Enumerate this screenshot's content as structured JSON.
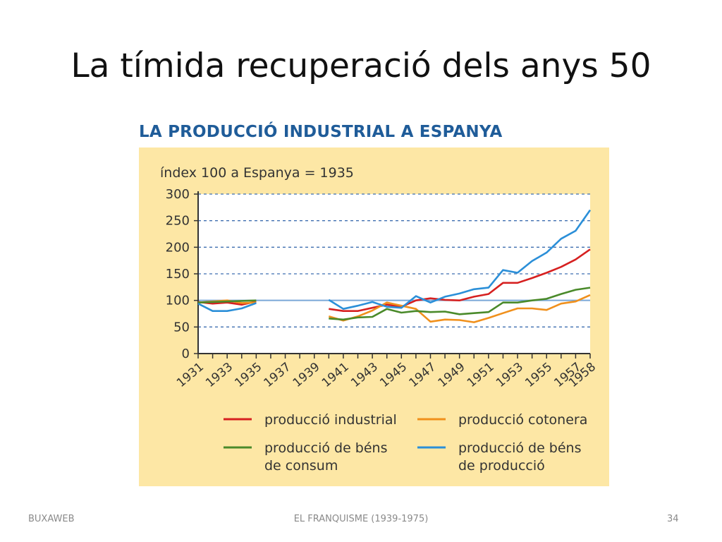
{
  "slide": {
    "title": "La tímida recuperació dels anys 50",
    "footer_left": "BUXAWEB",
    "footer_center": "EL FRANQUISME (1939-1975)",
    "footer_right": "34"
  },
  "chart_data": {
    "type": "line",
    "title": "LA PRODUCCIÓ INDUSTRIAL A ESPANYA",
    "subtitle": "índex 100 a Espanya = 1935",
    "xlim": [
      1931,
      1958
    ],
    "ylim": [
      0,
      300
    ],
    "yticks": [
      0,
      50,
      100,
      150,
      200,
      250,
      300
    ],
    "xtick_labels": [
      "1931",
      "1933",
      "1935",
      "1937",
      "1939",
      "1941",
      "1943",
      "1945",
      "1947",
      "1949",
      "1951",
      "1953",
      "1955",
      "1957",
      "1958"
    ],
    "grid": true,
    "reference_line": 100,
    "legend_position": "bottom",
    "series": [
      {
        "name": "producció industrial",
        "color": "#d62020",
        "segments": [
          {
            "x": [
              1931,
              1932,
              1933,
              1934,
              1935
            ],
            "y": [
              97,
              94,
              96,
              92,
              98
            ]
          },
          {
            "x": [
              1940,
              1941,
              1942,
              1943,
              1944,
              1945,
              1946,
              1947,
              1948,
              1949,
              1950,
              1951,
              1952,
              1953,
              1954,
              1955,
              1956,
              1957,
              1958
            ],
            "y": [
              84,
              80,
              80,
              86,
              92,
              88,
              100,
              104,
              101,
              100,
              107,
              112,
              133,
              133,
              142,
              152,
              163,
              177,
              196
            ]
          }
        ]
      },
      {
        "name": "producció cotonera",
        "color": "#f0901c",
        "segments": [
          {
            "x": [
              1931,
              1932,
              1933,
              1934,
              1935
            ],
            "y": [
              96,
              98,
              100,
              95,
              96
            ]
          },
          {
            "x": [
              1940,
              1941,
              1942,
              1943,
              1944,
              1945,
              1946,
              1947,
              1948,
              1949,
              1950,
              1951,
              1952,
              1953,
              1954,
              1955,
              1956,
              1957,
              1958
            ],
            "y": [
              70,
              62,
              70,
              81,
              96,
              90,
              84,
              60,
              64,
              63,
              59,
              67,
              76,
              85,
              85,
              82,
              94,
              98,
              110
            ]
          }
        ]
      },
      {
        "name": "producció de béns de consum",
        "color": "#4a8a2a",
        "segments": [
          {
            "x": [
              1931,
              1932,
              1933,
              1934,
              1935
            ],
            "y": [
              96,
              97,
              98,
              99,
              100
            ]
          },
          {
            "x": [
              1940,
              1941,
              1942,
              1943,
              1944,
              1945,
              1946,
              1947,
              1948,
              1949,
              1950,
              1951,
              1952,
              1953,
              1954,
              1955,
              1956,
              1957,
              1958
            ],
            "y": [
              66,
              64,
              68,
              69,
              84,
              77,
              80,
              78,
              79,
              74,
              76,
              78,
              96,
              96,
              100,
              103,
              112,
              120,
              124
            ]
          }
        ]
      },
      {
        "name": "producció de béns de producció",
        "color": "#2b8fd8",
        "segments": [
          {
            "x": [
              1931,
              1932,
              1933,
              1934,
              1935
            ],
            "y": [
              94,
              80,
              80,
              85,
              95
            ]
          },
          {
            "x": [
              1940,
              1941,
              1942,
              1943,
              1944,
              1945,
              1946,
              1947,
              1948,
              1949,
              1950,
              1951,
              1952,
              1953,
              1954,
              1955,
              1956,
              1957,
              1958
            ],
            "y": [
              101,
              84,
              90,
              97,
              88,
              86,
              108,
              96,
              107,
              113,
              121,
              124,
              157,
              152,
              174,
              190,
              216,
              231,
              270
            ]
          }
        ]
      }
    ],
    "legend_rows": [
      [
        {
          "series": 0,
          "lines": [
            "producció industrial"
          ]
        },
        {
          "series": 1,
          "lines": [
            "producció cotonera"
          ]
        }
      ],
      [
        {
          "series": 2,
          "lines": [
            "producció de béns",
            "de consum"
          ]
        },
        {
          "series": 3,
          "lines": [
            "producció de béns",
            "de producció"
          ]
        }
      ]
    ]
  }
}
